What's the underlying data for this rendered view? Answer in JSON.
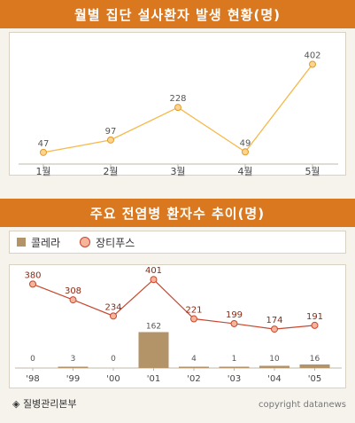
{
  "chart1": {
    "title": "월별 집단 설사환자 발생 현황(명)",
    "chart_data": {
      "type": "line",
      "categories": [
        "1월",
        "2월",
        "3월",
        "4월",
        "5월"
      ],
      "values": [
        47,
        97,
        228,
        49,
        402
      ],
      "ylim": [
        0,
        450
      ],
      "grid": false,
      "colors": {
        "line": "#f6b94a",
        "marker_fill": "#fbd58e",
        "marker_stroke": "#e39a2b"
      }
    }
  },
  "chart2": {
    "title": "주요 전염병 환자수 추이(명)",
    "legend": {
      "bar": "콜레라",
      "line": "장티푸스"
    },
    "chart_data": {
      "type": "bar",
      "categories": [
        "'98",
        "'99",
        "'00",
        "'01",
        "'02",
        "'03",
        "'04",
        "'05"
      ],
      "series": [
        {
          "name": "콜레라",
          "type": "bar",
          "values": [
            0,
            3,
            0,
            162,
            4,
            1,
            10,
            16
          ],
          "color": "#b39368"
        },
        {
          "name": "장티푸스",
          "type": "line",
          "values": [
            380,
            308,
            234,
            401,
            221,
            199,
            174,
            191
          ],
          "color": "#c8462e"
        }
      ],
      "legend_position": "top-left",
      "grid": false
    }
  },
  "footer": {
    "source": "◈ 질병관리본부",
    "copyright": "copyright datanews"
  },
  "colors": {
    "banner": "#d9781f",
    "background": "#f6f3ec"
  }
}
